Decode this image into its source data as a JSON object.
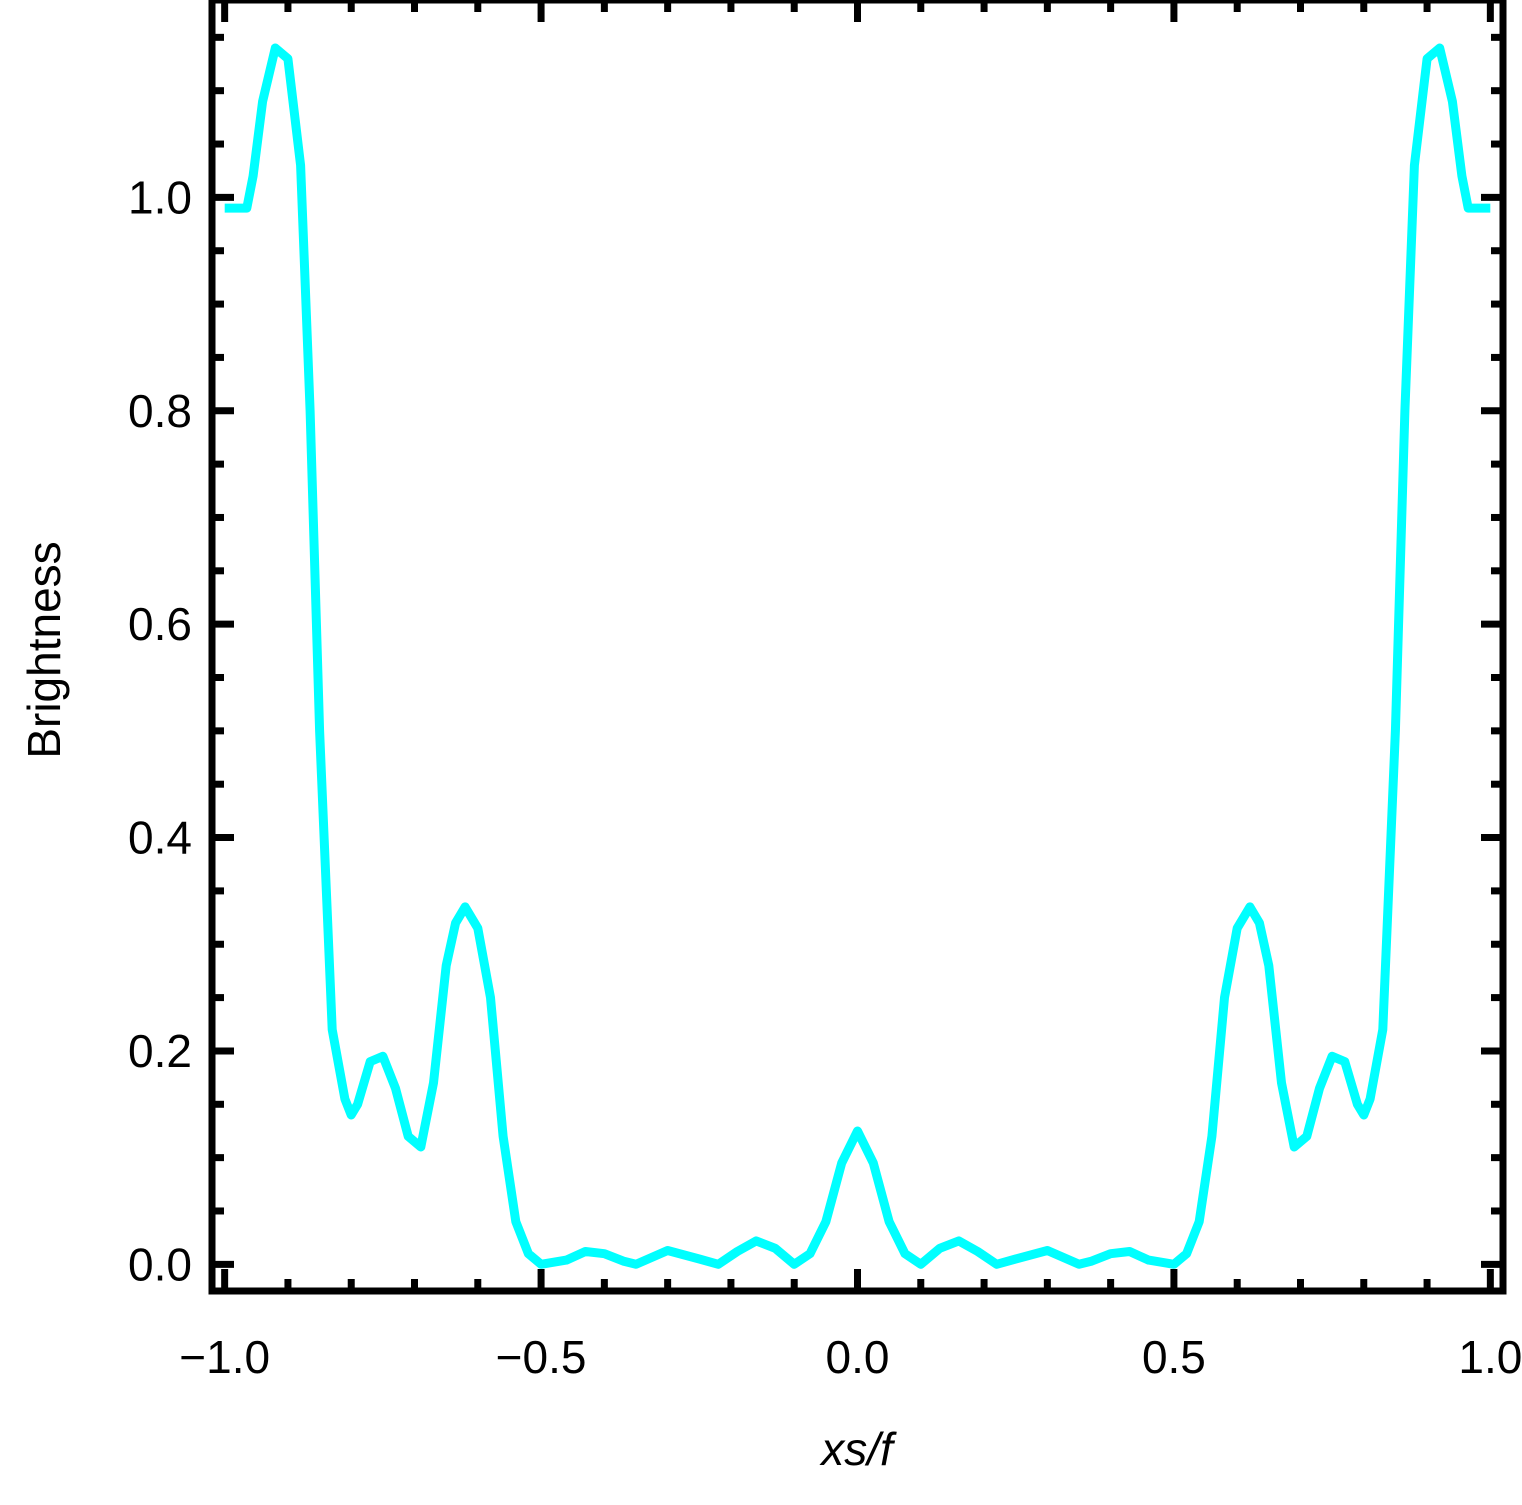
{
  "chart_data": {
    "type": "line",
    "title": "",
    "xlabel": "xs/f",
    "ylabel": "Brightness",
    "xlim": [
      -1.02,
      1.02
    ],
    "ylim": [
      -0.025,
      1.185
    ],
    "x_ticks": [
      {
        "value": -1.0,
        "label": "−1.0"
      },
      {
        "value": -0.5,
        "label": "−0.5"
      },
      {
        "value": 0.0,
        "label": "0.0"
      },
      {
        "value": 0.5,
        "label": "0.5"
      },
      {
        "value": 1.0,
        "label": "1.0"
      }
    ],
    "y_ticks": [
      {
        "value": 0.0,
        "label": "0.0"
      },
      {
        "value": 0.2,
        "label": "0.2"
      },
      {
        "value": 0.4,
        "label": "0.4"
      },
      {
        "value": 0.6,
        "label": "0.6"
      },
      {
        "value": 0.8,
        "label": "0.8"
      },
      {
        "value": 1.0,
        "label": "1.0"
      }
    ],
    "grid": false,
    "line_color": "#00ffff",
    "frame_color": "#000000",
    "series": [
      {
        "x": [
          0.0,
          0.025,
          0.05,
          0.075,
          0.1,
          0.13,
          0.16,
          0.19,
          0.22,
          0.25,
          0.3,
          0.35,
          0.37,
          0.4,
          0.43,
          0.46,
          0.5,
          0.52,
          0.54,
          0.56,
          0.58,
          0.6,
          0.62,
          0.635,
          0.65,
          0.67,
          0.69,
          0.71,
          0.73,
          0.75,
          0.77,
          0.79,
          0.8,
          0.81,
          0.83,
          0.85,
          0.865,
          0.88,
          0.9,
          0.92,
          0.94,
          0.955,
          0.965,
          0.975,
          0.99,
          1.0
        ],
        "y": [
          0.125,
          0.095,
          0.04,
          0.01,
          0.0,
          0.015,
          0.022,
          0.012,
          0.0,
          0.005,
          0.013,
          0.0,
          0.003,
          0.01,
          0.012,
          0.004,
          0.0,
          0.01,
          0.04,
          0.12,
          0.25,
          0.315,
          0.335,
          0.32,
          0.28,
          0.17,
          0.11,
          0.12,
          0.165,
          0.195,
          0.19,
          0.15,
          0.14,
          0.155,
          0.22,
          0.5,
          0.8,
          1.03,
          1.13,
          1.14,
          1.09,
          1.02,
          0.99,
          0.99,
          0.99,
          0.99
        ]
      }
    ]
  }
}
